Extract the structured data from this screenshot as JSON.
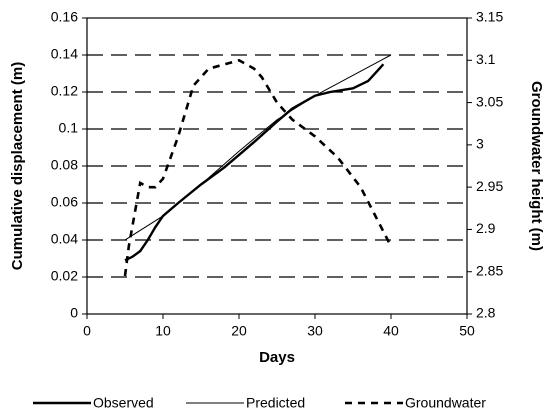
{
  "chart_data": {
    "type": "line",
    "x_label": "Days",
    "y_label": "Cumulative displacement (m)",
    "y2_label": "Groundwater height (m)",
    "xlim": [
      0,
      50
    ],
    "xticks": [
      0,
      10,
      20,
      30,
      40,
      50
    ],
    "ylim": [
      0,
      0.16
    ],
    "yticks": [
      0,
      0.02,
      0.04,
      0.06,
      0.08,
      0.1,
      0.12,
      0.14,
      0.16
    ],
    "y2lim": [
      2.8,
      3.15
    ],
    "y2ticks": [
      2.8,
      2.85,
      2.9,
      2.95,
      3,
      3.05,
      3.1,
      3.15
    ],
    "grid": true,
    "series": [
      {
        "name": "Observed",
        "color": "#000000",
        "style": "solid",
        "width": 2.4,
        "x": [
          5,
          6,
          7,
          8,
          9,
          10,
          12,
          15,
          18,
          20,
          22,
          25,
          27,
          30,
          32,
          35,
          37,
          39
        ],
        "values": [
          0.029,
          0.031,
          0.034,
          0.04,
          0.047,
          0.053,
          0.06,
          0.07,
          0.079,
          0.086,
          0.093,
          0.104,
          0.111,
          0.118,
          0.12,
          0.122,
          0.126,
          0.135
        ]
      },
      {
        "name": "Predicted",
        "color": "#000000",
        "style": "solid",
        "width": 1,
        "x": [
          5,
          10,
          15,
          20,
          25,
          30,
          35,
          40
        ],
        "values": [
          0.04,
          0.053,
          0.07,
          0.088,
          0.105,
          0.118,
          0.129,
          0.14
        ]
      },
      {
        "name": "Groundwater",
        "color": "#000000",
        "style": "dashed",
        "width": 2.6,
        "axis": "y2",
        "x": [
          5,
          5.5,
          6.5,
          7,
          8,
          9,
          10,
          11,
          12,
          13,
          14,
          15,
          16,
          18,
          20,
          22,
          23,
          25,
          27,
          30,
          33,
          36,
          38,
          40
        ],
        "values": [
          2.845,
          2.88,
          2.93,
          2.955,
          2.95,
          2.95,
          2.96,
          2.985,
          3.01,
          3.04,
          3.07,
          3.08,
          3.09,
          3.095,
          3.1,
          3.09,
          3.08,
          3.05,
          3.03,
          3.01,
          2.985,
          2.95,
          2.915,
          2.88
        ]
      }
    ]
  }
}
